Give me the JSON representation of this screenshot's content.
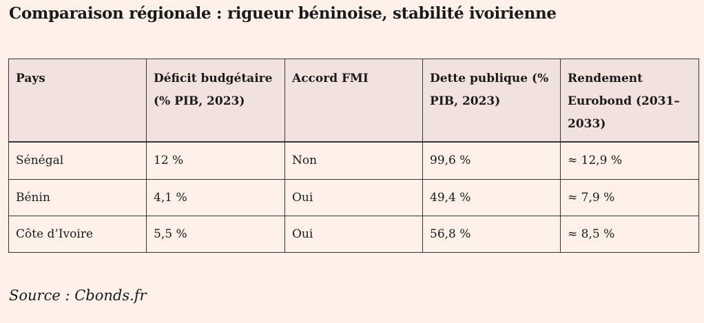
{
  "title": "Comparaison régionale : rigueur béninoise, stabilité ivoirienne",
  "table": {
    "headers": [
      "Pays",
      "Déficit budgétaire (% PIB, 2023)",
      "Accord FMI",
      "Dette publique (% PIB, 2023)",
      "Rendement Eurobond (2031–2033)"
    ],
    "rows": [
      [
        "Sénégal",
        "12 %",
        "Non",
        "99,6 %",
        "≈ 12,9 %"
      ],
      [
        "Bénin",
        "4,1 %",
        "Oui",
        "49,4 %",
        "≈ 7,9 %"
      ],
      [
        "Côte d’Ivoire",
        "5,5 %",
        "Oui",
        "56,8 %",
        "≈ 8,5 %"
      ]
    ]
  },
  "source": "Source : Cbonds.fr"
}
